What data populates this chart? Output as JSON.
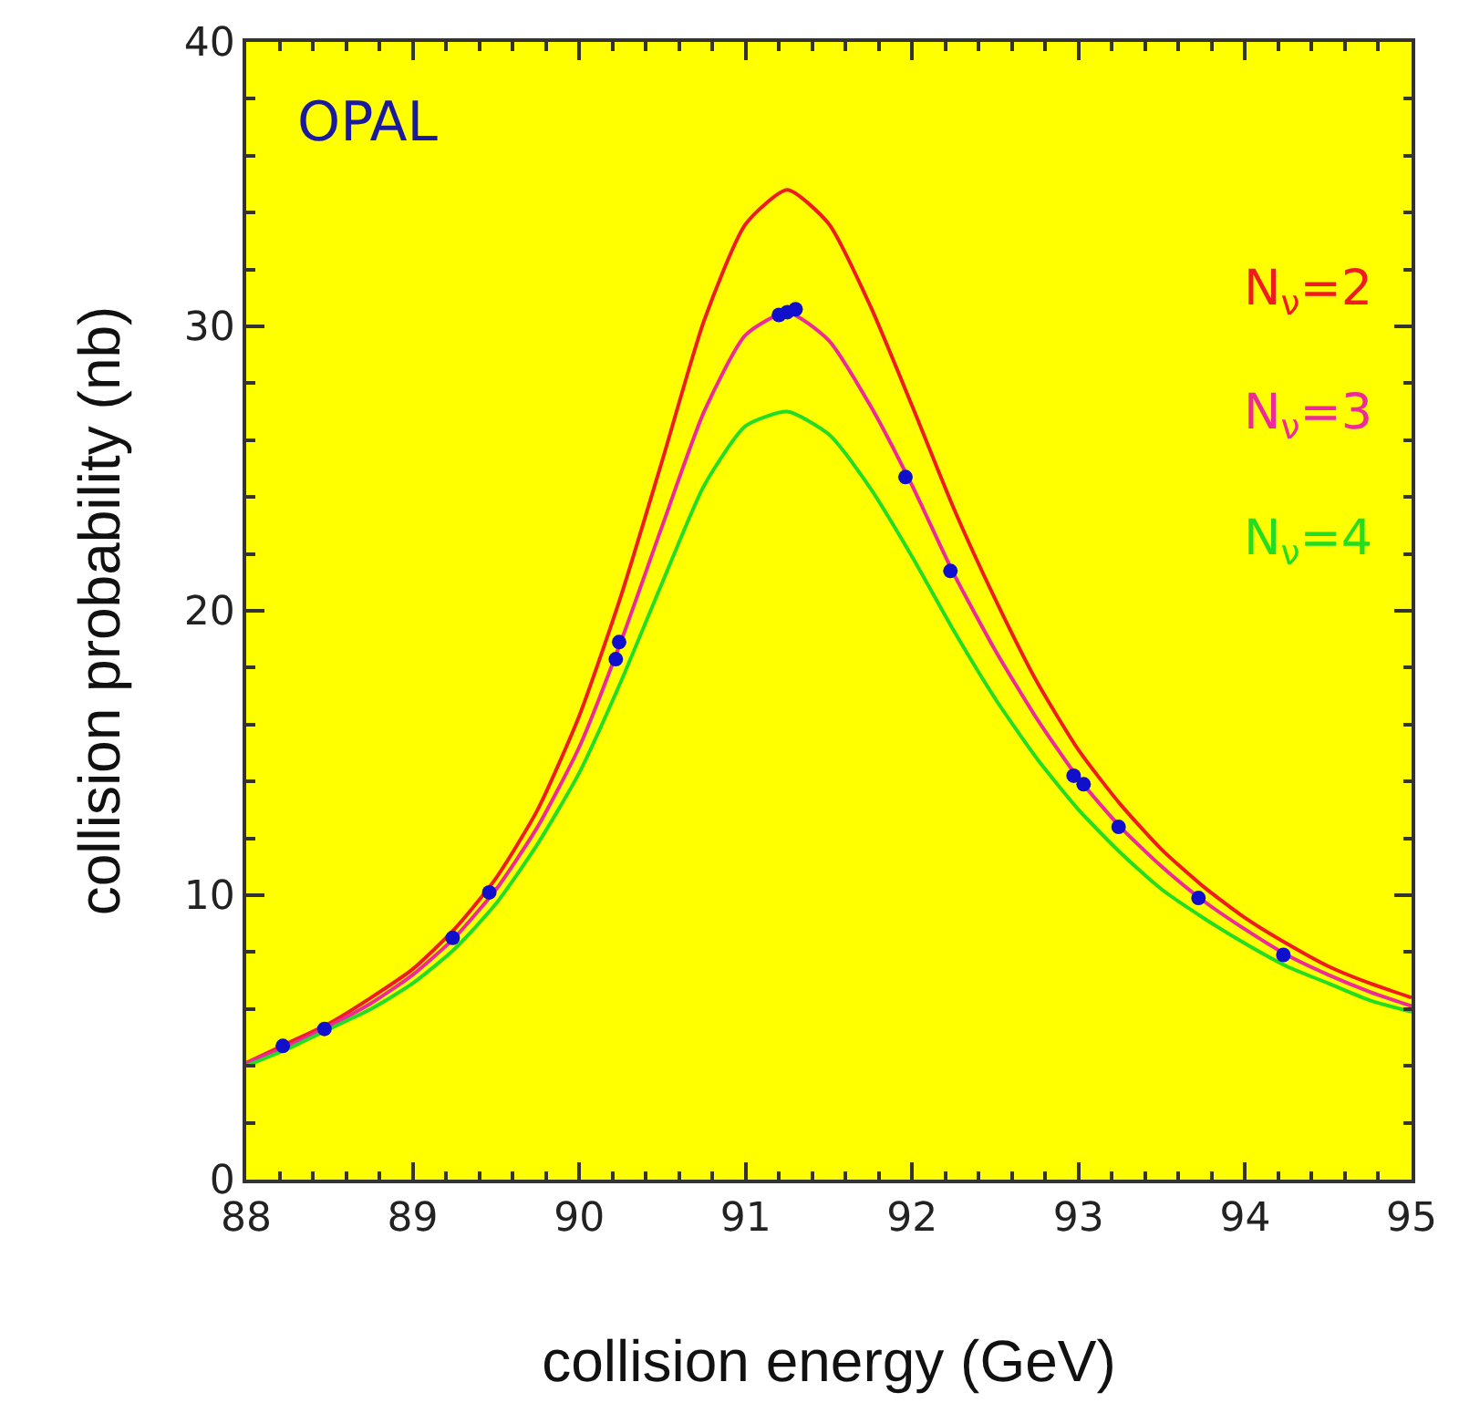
{
  "chart_data": {
    "type": "line",
    "xlabel": "collision energy (GeV)",
    "ylabel": "collision probability (nb)",
    "annotations": [
      "OPAL"
    ],
    "xlim": [
      88,
      95
    ],
    "xticks": [
      88,
      89,
      90,
      91,
      92,
      93,
      94,
      95
    ],
    "ylim": [
      0,
      40
    ],
    "yticks": [
      0,
      10,
      20,
      30,
      40
    ],
    "grid": false,
    "marker": "none",
    "line_style": "solid",
    "x": [
      88,
      88.25,
      88.5,
      88.75,
      89,
      89.25,
      89.5,
      89.75,
      90,
      90.25,
      90.5,
      90.75,
      91,
      91.25,
      91.5,
      91.75,
      92,
      92.25,
      92.5,
      92.75,
      93,
      93.25,
      93.5,
      93.75,
      94,
      94.25,
      94.5,
      94.75,
      95
    ],
    "series": [
      {
        "name": "N$_{ν}$=2",
        "color": "#ee1c1c",
        "values": [
          4.1,
          4.8,
          5.5,
          6.4,
          7.4,
          8.8,
          10.6,
          13.0,
          16.3,
          20.5,
          25.3,
          30.2,
          33.6,
          34.8,
          33.6,
          30.7,
          27.2,
          23.6,
          20.4,
          17.5,
          15.1,
          13.2,
          11.6,
          10.3,
          9.2,
          8.3,
          7.5,
          6.9,
          6.4
        ]
      },
      {
        "name": "N$_{ν}$=3",
        "color": "#ee2a9a",
        "values": [
          4.1,
          4.7,
          5.4,
          6.2,
          7.2,
          8.5,
          10.2,
          12.4,
          15.2,
          18.9,
          23.0,
          27.0,
          29.7,
          30.5,
          29.5,
          27.2,
          24.4,
          21.3,
          18.6,
          16.2,
          14.1,
          12.4,
          11.0,
          9.8,
          8.8,
          7.9,
          7.2,
          6.6,
          6.1
        ]
      },
      {
        "name": "N$_{ν}$=4",
        "color": "#22dd22",
        "values": [
          4.0,
          4.6,
          5.3,
          6.0,
          6.9,
          8.1,
          9.7,
          11.8,
          14.3,
          17.5,
          21.0,
          24.4,
          26.5,
          27.0,
          26.2,
          24.3,
          21.9,
          19.3,
          16.9,
          14.8,
          13.0,
          11.5,
          10.2,
          9.2,
          8.3,
          7.5,
          6.9,
          6.3,
          5.9
        ]
      },
      {
        "type": "scatter",
        "marker": "circle",
        "color": "#1010cc",
        "x": [
          88.22,
          88.47,
          89.24,
          89.43,
          89.46,
          90.22,
          90.24,
          91.2,
          91.25,
          91.3,
          91.96,
          92.23,
          92.97,
          93.03,
          93.24,
          93.72,
          94.23
        ],
        "values": [
          4.7,
          5.3,
          8.5,
          null,
          10.1,
          18.3,
          18.9,
          30.4,
          30.5,
          30.6,
          24.7,
          21.4,
          14.2,
          13.9,
          12.4,
          9.9,
          7.9
        ]
      }
    ]
  }
}
